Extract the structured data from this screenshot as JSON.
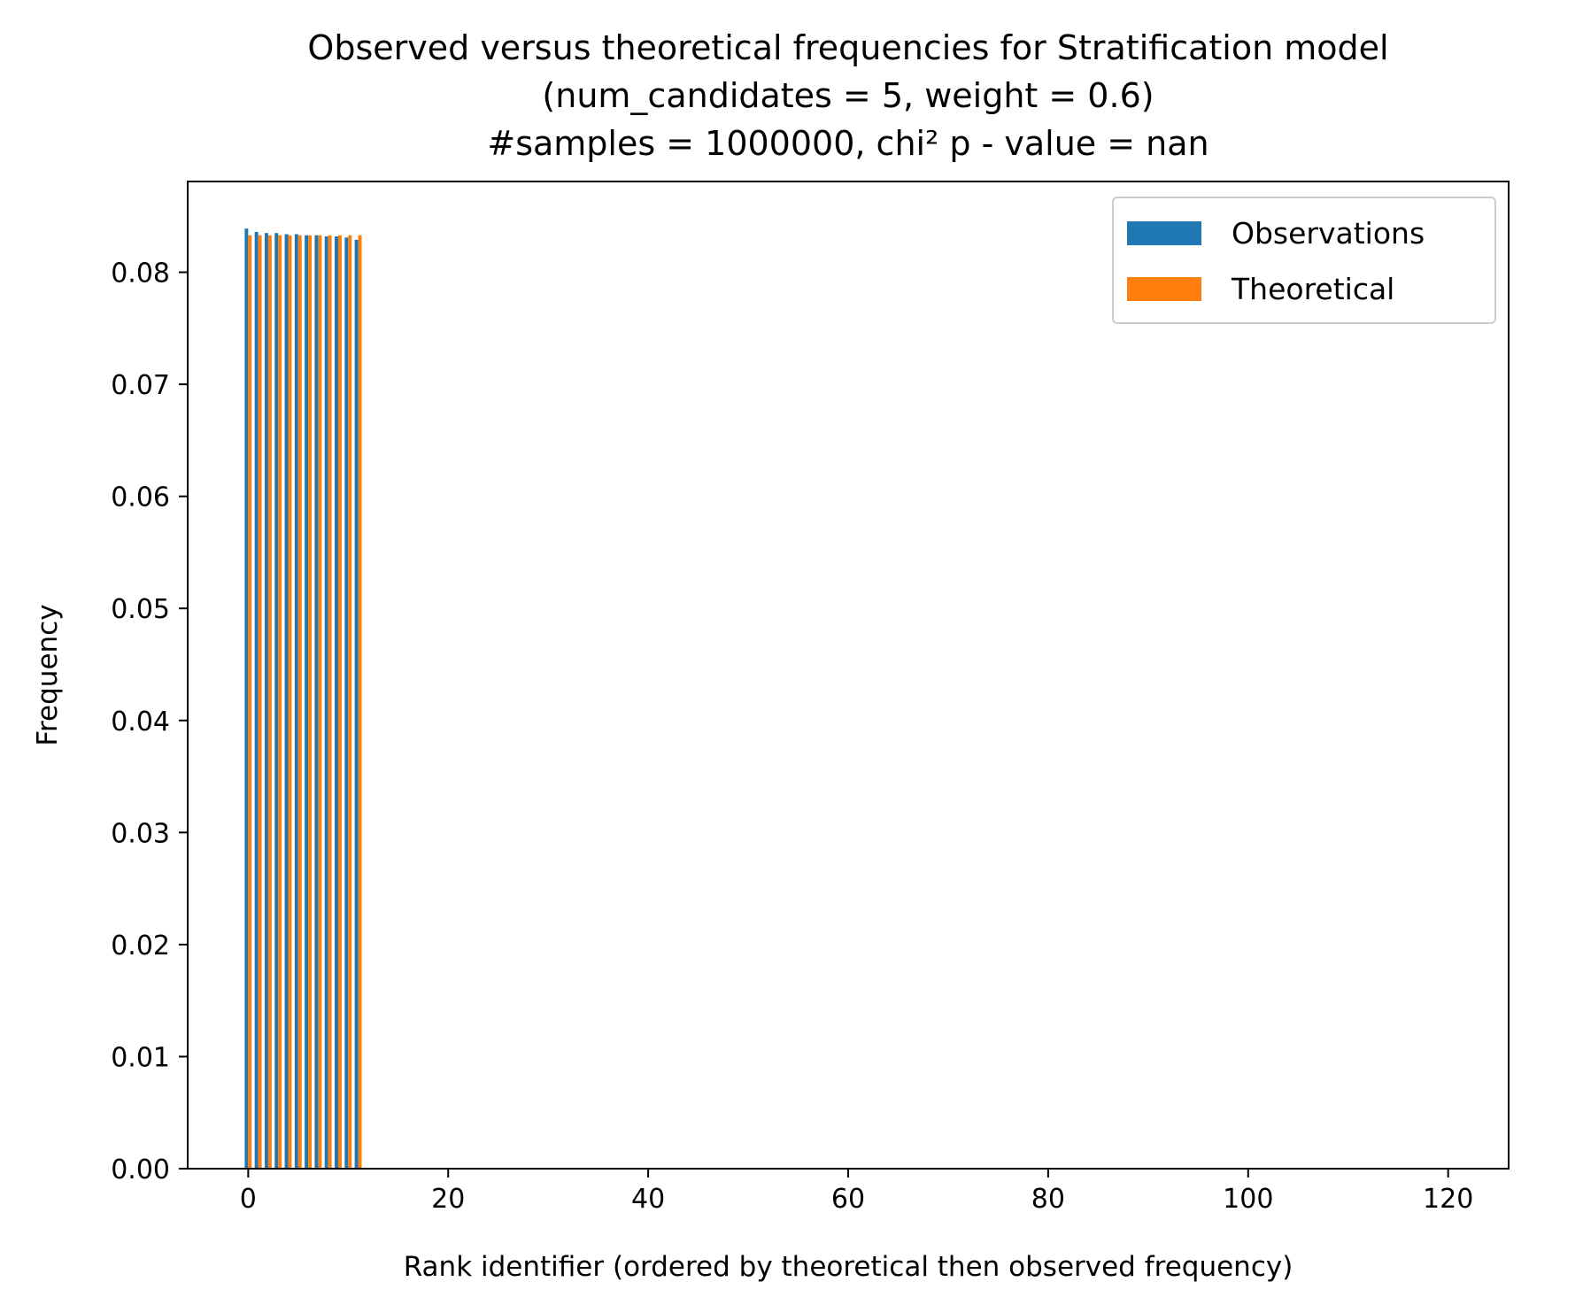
{
  "chart_data": {
    "type": "bar",
    "title": [
      "Observed versus theoretical frequencies for Stratification model",
      "(num_candidates = 5, weight = 0.6)",
      "#samples = 1000000, chi² p - value = nan"
    ],
    "xlabel": "Rank identifier (ordered by theoretical then observed frequency)",
    "ylabel": "Frequency",
    "xlim": [
      -6.05,
      126.05
    ],
    "ylim": [
      0,
      0.0881
    ],
    "xticks": [
      0,
      20,
      40,
      60,
      80,
      100,
      120
    ],
    "xtick_labels": [
      "0",
      "20",
      "40",
      "60",
      "80",
      "100",
      "120"
    ],
    "yticks": [
      0,
      0.01,
      0.02,
      0.03,
      0.04,
      0.05,
      0.06,
      0.07,
      0.08
    ],
    "ytick_labels": [
      "0.00",
      "0.01",
      "0.02",
      "0.03",
      "0.04",
      "0.05",
      "0.06",
      "0.07",
      "0.08"
    ],
    "grid": false,
    "legend_position": "top-right",
    "bar_width": 0.35,
    "x": [
      0,
      1,
      2,
      3,
      4,
      5,
      6,
      7,
      8,
      9,
      10,
      11
    ],
    "series": [
      {
        "name": "Observations",
        "color": "#1f77b4",
        "values": [
          0.0839,
          0.0836,
          0.0835,
          0.0835,
          0.0834,
          0.0834,
          0.0833,
          0.0833,
          0.0832,
          0.0832,
          0.0831,
          0.0829
        ]
      },
      {
        "name": "Theoretical",
        "color": "#ff7f0e",
        "values": [
          0.0833,
          0.0833,
          0.0833,
          0.0833,
          0.0833,
          0.0833,
          0.0833,
          0.0833,
          0.0833,
          0.0833,
          0.0833,
          0.0833
        ]
      }
    ]
  }
}
